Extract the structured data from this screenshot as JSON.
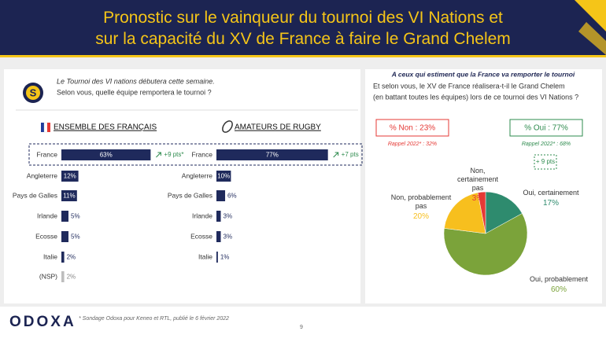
{
  "header": {
    "title": "Pronostic sur le vainqueur du tournoi des VI Nations et sur la capacité du XV de France à faire le Grand Chelem"
  },
  "question": {
    "lines": [
      "Le Tournoi des VI nations débutera cette semaine.",
      "Selon vous, quelle équipe remportera le tournoi ?"
    ]
  },
  "chart_data": [
    {
      "type": "bar",
      "title": "ENSEMBLE DES FRANÇAIS",
      "categories": [
        "France",
        "Angleterre",
        "Pays de Galles",
        "Irlande",
        "Ecosse",
        "Italie",
        "(NSP)"
      ],
      "values": [
        63,
        12,
        11,
        5,
        5,
        2,
        2
      ],
      "value_labels": [
        "63%",
        "12%",
        "11%",
        "5%",
        "5%",
        "2%",
        "2%"
      ],
      "colors": [
        "#1f2a5c",
        "#1f2a5c",
        "#1f2a5c",
        "#1f2a5c",
        "#1f2a5c",
        "#1f2a5c",
        "#bdbdbd"
      ],
      "annotation": "+9 pts*"
    },
    {
      "type": "bar",
      "title": "AMATEURS DE RUGBY",
      "categories": [
        "France",
        "Angleterre",
        "Pays de Galles",
        "Irlande",
        "Ecosse",
        "Italie"
      ],
      "values": [
        77,
        10,
        6,
        3,
        3,
        1
      ],
      "value_labels": [
        "77%",
        "10%",
        "6%",
        "3%",
        "3%",
        "1%"
      ],
      "colors": [
        "#1f2a5c",
        "#1f2a5c",
        "#1f2a5c",
        "#1f2a5c",
        "#1f2a5c",
        "#1f2a5c"
      ],
      "annotation": "+7 pts"
    },
    {
      "type": "pie",
      "categories": [
        "Oui, certainement",
        "Oui, probablement",
        "Non, probablement pas",
        "Non, certainement pas"
      ],
      "values": [
        17,
        60,
        20,
        3
      ],
      "value_labels": [
        "17%",
        "60%",
        "20%",
        "3%"
      ],
      "colors": [
        "#2e8b6e",
        "#7ba33a",
        "#f7bf1e",
        "#e53935"
      ]
    }
  ],
  "right_panel": {
    "intro": "A ceux qui estiment que la France va remporter le tournoi",
    "question": [
      "Et selon vous, le XV de France réalisera-t-il le Grand Chelem",
      "(en battant toutes les équipes) lors de ce tournoi des VI Nations ?"
    ],
    "non": {
      "total": "% Non : 23%",
      "rappel": "Rappel 2022* : 32%"
    },
    "oui": {
      "total": "% Oui : 77%",
      "rappel": "Rappel 2022* : 68%",
      "evolution": "+ 9 pts"
    }
  },
  "footer": {
    "logo": "ODOXA",
    "note": "* Sondage Odoxa pour Keneo et RTL, publié le 6 février 2022",
    "page": "9"
  }
}
